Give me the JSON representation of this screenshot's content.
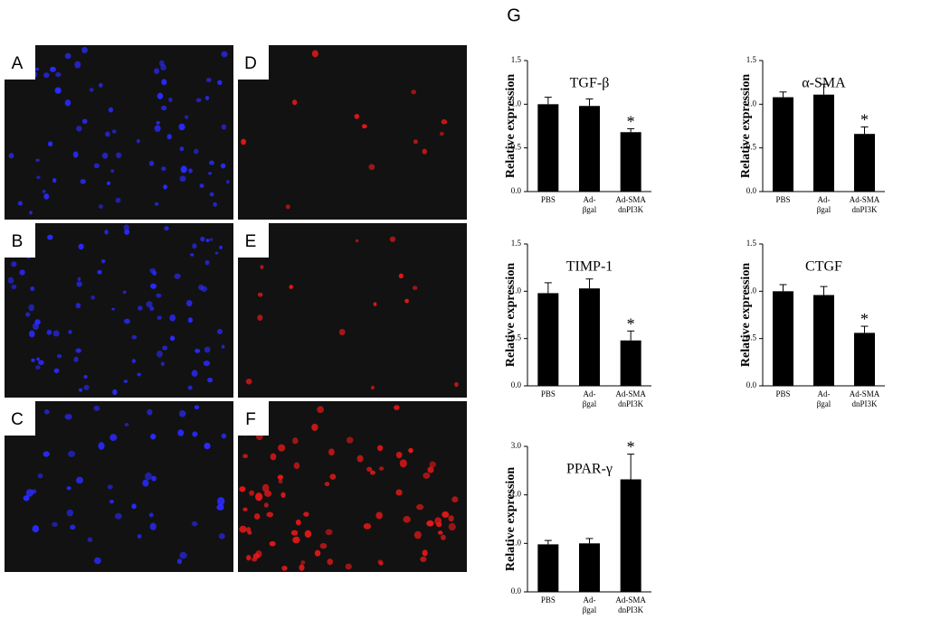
{
  "panel_labels": [
    "A",
    "B",
    "C",
    "D",
    "E",
    "F"
  ],
  "figure_label": "G",
  "chart_data": [
    {
      "type": "bar",
      "title": "TGF-β",
      "y_label": "Relative expression",
      "categories": [
        [
          "PBS"
        ],
        [
          "Ad-",
          "βgal"
        ],
        [
          "Ad-SMA",
          "dnPI3K"
        ]
      ],
      "values": [
        1.0,
        0.98,
        0.68
      ],
      "errors": [
        0.08,
        0.08,
        0.04
      ],
      "significance": [
        null,
        null,
        "*"
      ],
      "color": "#000000",
      "ylim": [
        0,
        1.5
      ],
      "yticks": [
        {
          "value": 0,
          "label": "0.0"
        },
        {
          "value": 0.5,
          "label": "0.5"
        },
        {
          "value": 1,
          "label": "1.0"
        },
        {
          "value": 1.5,
          "label": "1.5"
        }
      ]
    },
    {
      "type": "bar",
      "title": "α-SMA",
      "y_label": "Relative expression",
      "categories": [
        [
          "PBS"
        ],
        [
          "Ad-",
          "βgal"
        ],
        [
          "Ad-SMA",
          "dnPI3K"
        ]
      ],
      "values": [
        1.08,
        1.11,
        0.66
      ],
      "errors": [
        0.06,
        0.12,
        0.08
      ],
      "significance": [
        null,
        null,
        "*"
      ],
      "color": "#000000",
      "ylim": [
        0,
        1.5
      ],
      "yticks": [
        {
          "value": 0,
          "label": "0.0"
        },
        {
          "value": 0.5,
          "label": "0.5"
        },
        {
          "value": 1,
          "label": "1.0"
        },
        {
          "value": 1.5,
          "label": "1.5"
        }
      ]
    },
    {
      "type": "bar",
      "title": "TIMP-1",
      "y_label": "Relative expression",
      "categories": [
        [
          "PBS"
        ],
        [
          "Ad-",
          "βgal"
        ],
        [
          "Ad-SMA",
          "dnPI3K"
        ]
      ],
      "values": [
        0.98,
        1.03,
        0.48
      ],
      "errors": [
        0.11,
        0.1,
        0.1
      ],
      "significance": [
        null,
        null,
        "*"
      ],
      "color": "#000000",
      "ylim": [
        0,
        1.5
      ],
      "yticks": [
        {
          "value": 0,
          "label": "0.0"
        },
        {
          "value": 0.5,
          "label": "0.5"
        },
        {
          "value": 1,
          "label": "1.0"
        },
        {
          "value": 1.5,
          "label": "1.5"
        }
      ]
    },
    {
      "type": "bar",
      "title": "CTGF",
      "y_label": "Relative expression",
      "categories": [
        [
          "PBS"
        ],
        [
          "Ad-",
          "βgal"
        ],
        [
          "Ad-SMA",
          "dnPI3K"
        ]
      ],
      "values": [
        1.0,
        0.96,
        0.56
      ],
      "errors": [
        0.07,
        0.09,
        0.07
      ],
      "significance": [
        null,
        null,
        "*"
      ],
      "color": "#000000",
      "ylim": [
        0,
        1.5
      ],
      "yticks": [
        {
          "value": 0,
          "label": "0.0"
        },
        {
          "value": 0.5,
          "label": "0.5"
        },
        {
          "value": 1,
          "label": "1.0"
        },
        {
          "value": 1.5,
          "label": "1.5"
        }
      ]
    },
    {
      "type": "bar",
      "title": "PPAR-γ",
      "y_label": "Relative expression",
      "categories": [
        [
          "PBS"
        ],
        [
          "Ad-",
          "βgal"
        ],
        [
          "Ad-SMA",
          "dnPI3K"
        ]
      ],
      "values": [
        0.98,
        1.0,
        2.32
      ],
      "errors": [
        0.08,
        0.1,
        0.52
      ],
      "significance": [
        null,
        null,
        "*"
      ],
      "color": "#000000",
      "ylim": [
        0,
        3
      ],
      "yticks": [
        {
          "value": 0,
          "label": "0.0"
        },
        {
          "value": 1,
          "label": "1.0"
        },
        {
          "value": 2,
          "label": "2.0"
        },
        {
          "value": 3,
          "label": "3.0"
        }
      ]
    }
  ]
}
